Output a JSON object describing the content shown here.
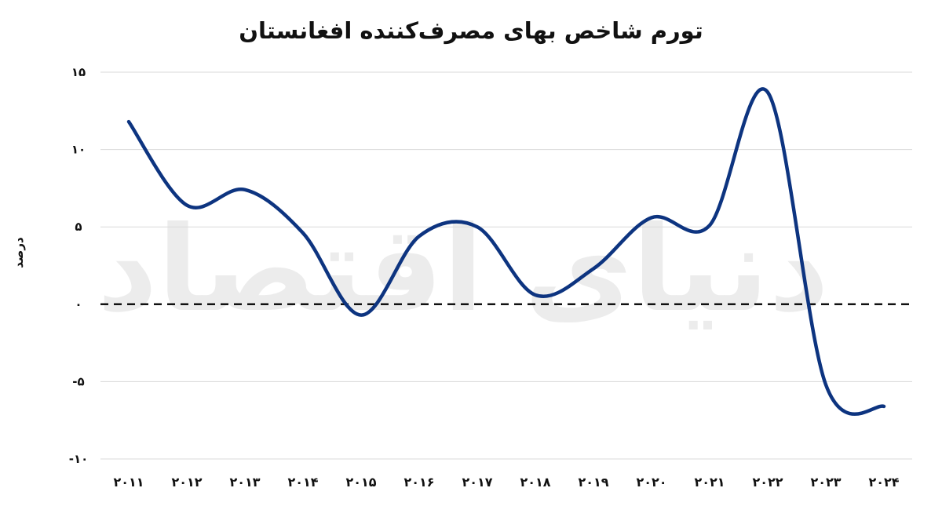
{
  "chart_data": {
    "type": "line",
    "title": "تورم شاخص بهای مصرف‌کننده افغانستان",
    "ylabel": "درصد",
    "xlabel": "",
    "x": [
      "۲۰۱۱",
      "۲۰۱۲",
      "۲۰۱۳",
      "۲۰۱۴",
      "۲۰۱۵",
      "۲۰۱۶",
      "۲۰۱۷",
      "۲۰۱۸",
      "۲۰۱۹",
      "۲۰۲۰",
      "۲۰۲۱",
      "۲۰۲۲",
      "۲۰۲۳",
      "۲۰۲۴"
    ],
    "series": [
      {
        "values": [
          11.8,
          6.4,
          7.4,
          4.6,
          -0.7,
          4.4,
          5.0,
          0.6,
          2.3,
          5.6,
          5.1,
          13.7,
          -5.2,
          -6.6
        ],
        "color": "#0d3480"
      }
    ],
    "yticks": [
      {
        "value": 15,
        "label": "۱۵"
      },
      {
        "value": 10,
        "label": "۱۰"
      },
      {
        "value": 5,
        "label": "۵"
      },
      {
        "value": 0,
        "label": "۰"
      },
      {
        "value": -5,
        "label": "-۵"
      },
      {
        "value": -10,
        "label": "-۱۰"
      }
    ],
    "ylim": [
      -10,
      15
    ],
    "grid": true,
    "reference_line": {
      "value": 0,
      "style": "dashed"
    },
    "watermark": "دنیای اقتصاد"
  }
}
